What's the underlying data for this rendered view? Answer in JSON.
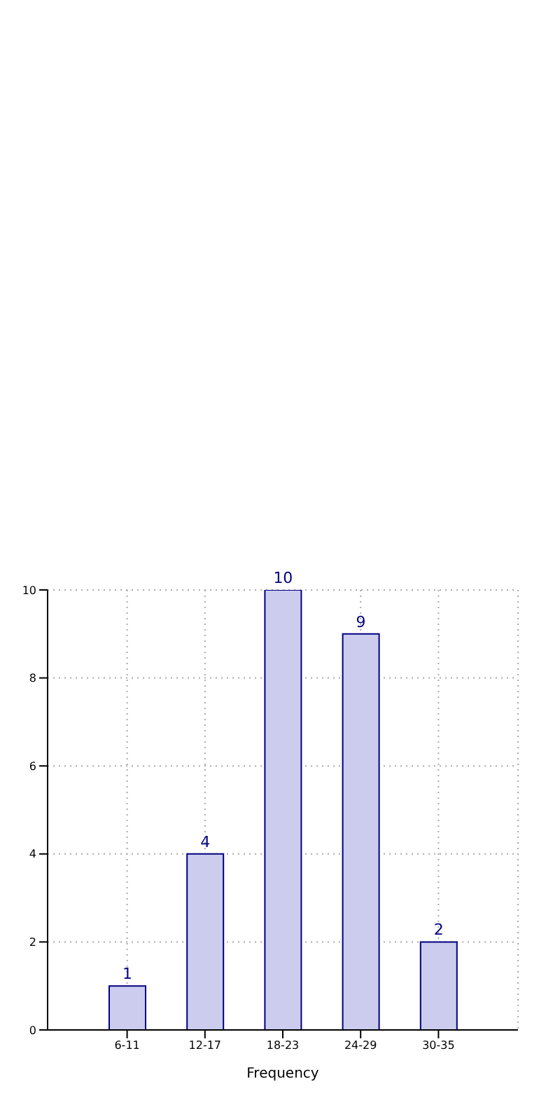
{
  "chart_data": {
    "type": "bar",
    "xlabel": "Frequency",
    "categories": [
      "6-11",
      "12-17",
      "18-23",
      "24-29",
      "30-35"
    ],
    "values": [
      1,
      4,
      10,
      9,
      2
    ],
    "color": "#ccccee",
    "ylim": [
      0,
      10
    ],
    "yticks": [
      0,
      2,
      4,
      6,
      8,
      10
    ],
    "grid": true,
    "data_labels": true
  }
}
